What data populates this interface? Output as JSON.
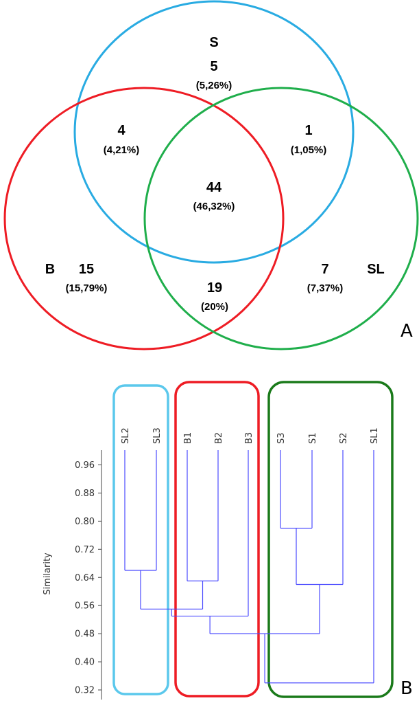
{
  "venn": {
    "sets": [
      {
        "label": "S",
        "color": "#29abe2"
      },
      {
        "label": "B",
        "color": "#ee1c24"
      },
      {
        "label": "SL",
        "color": "#1fae4b"
      }
    ],
    "regions": {
      "s_only": {
        "count": "5",
        "pct": "(5,26%)"
      },
      "s_b": {
        "count": "4",
        "pct": "(4,21%)"
      },
      "s_sl": {
        "count": "1",
        "pct": "(1,05%)"
      },
      "all": {
        "count": "44",
        "pct": "(46,32%)"
      },
      "b_only": {
        "count": "15",
        "pct": "(15,79%)"
      },
      "b_sl": {
        "count": "19",
        "pct": "(20%)"
      },
      "sl_only": {
        "count": "7",
        "pct": "(7,37%)"
      }
    },
    "panel_label": "A"
  },
  "dendrogram": {
    "panel_label": "B",
    "ylabel": "Similarity",
    "leaves": [
      "SL2",
      "SL3",
      "B1",
      "B2",
      "B3",
      "S3",
      "S1",
      "S2",
      "SL1"
    ],
    "ticks": [
      "0.96",
      "0.88",
      "0.80",
      "0.72",
      "0.64",
      "0.56",
      "0.48",
      "0.40",
      "0.32"
    ],
    "link_color": "#4b4bff",
    "group_colors": {
      "sl_group": "#5bc8ec",
      "b_group": "#ee1c24",
      "s_group": "#1a7a1a"
    }
  },
  "chart_data": {
    "type": "dendrogram",
    "leaves": [
      "SL2",
      "SL3",
      "B1",
      "B2",
      "B3",
      "S3",
      "S1",
      "S2",
      "SL1"
    ],
    "ylabel": "Similarity",
    "ylim": [
      0.3,
      1.0
    ],
    "merges": [
      {
        "members": [
          "S3",
          "S1"
        ],
        "similarity": 0.78
      },
      {
        "members": [
          "SL2",
          "SL3"
        ],
        "similarity": 0.66
      },
      {
        "members": [
          "B1",
          "B2"
        ],
        "similarity": 0.63
      },
      {
        "members": [
          "S3",
          "S1",
          "S2"
        ],
        "similarity": 0.62
      },
      {
        "members": [
          "SL2",
          "SL3",
          "B1",
          "B2"
        ],
        "similarity": 0.55
      },
      {
        "members": [
          "SL2",
          "SL3",
          "B1",
          "B2",
          "B3"
        ],
        "similarity": 0.53
      },
      {
        "members": [
          "SL2",
          "SL3",
          "B1",
          "B2",
          "B3",
          "S3",
          "S1",
          "S2"
        ],
        "similarity": 0.48
      },
      {
        "members": [
          "SL2",
          "SL3",
          "B1",
          "B2",
          "B3",
          "S3",
          "S1",
          "S2",
          "SL1"
        ],
        "similarity": 0.34
      }
    ]
  }
}
